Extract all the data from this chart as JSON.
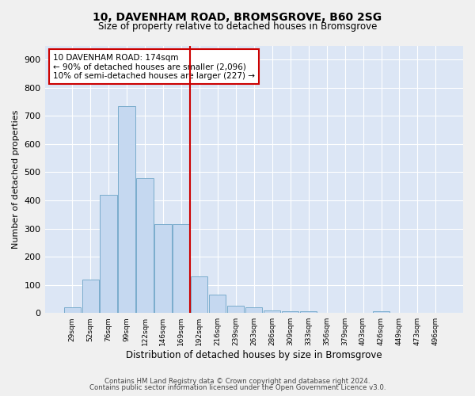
{
  "title1": "10, DAVENHAM ROAD, BROMSGROVE, B60 2SG",
  "title2": "Size of property relative to detached houses in Bromsgrove",
  "xlabel": "Distribution of detached houses by size in Bromsgrove",
  "ylabel": "Number of detached properties",
  "categories": [
    "29sqm",
    "52sqm",
    "76sqm",
    "99sqm",
    "122sqm",
    "146sqm",
    "169sqm",
    "192sqm",
    "216sqm",
    "239sqm",
    "263sqm",
    "286sqm",
    "309sqm",
    "333sqm",
    "356sqm",
    "379sqm",
    "403sqm",
    "426sqm",
    "449sqm",
    "473sqm",
    "496sqm"
  ],
  "bar_heights": [
    20,
    120,
    420,
    735,
    480,
    315,
    315,
    130,
    65,
    25,
    20,
    10,
    5,
    5,
    0,
    0,
    0,
    5,
    0,
    0,
    0
  ],
  "bar_color": "#c5d8f0",
  "bar_edge_color": "#7aaccc",
  "vline_color": "#cc0000",
  "annotation_line1": "10 DAVENHAM ROAD: 174sqm",
  "annotation_line2": "← 90% of detached houses are smaller (2,096)",
  "annotation_line3": "10% of semi-detached houses are larger (227) →",
  "annotation_box_color": "#cc0000",
  "ylim": [
    0,
    950
  ],
  "yticks": [
    0,
    100,
    200,
    300,
    400,
    500,
    600,
    700,
    800,
    900
  ],
  "footer1": "Contains HM Land Registry data © Crown copyright and database right 2024.",
  "footer2": "Contains public sector information licensed under the Open Government Licence v3.0.",
  "plot_bg_color": "#dce6f5",
  "fig_bg_color": "#f0f0f0"
}
